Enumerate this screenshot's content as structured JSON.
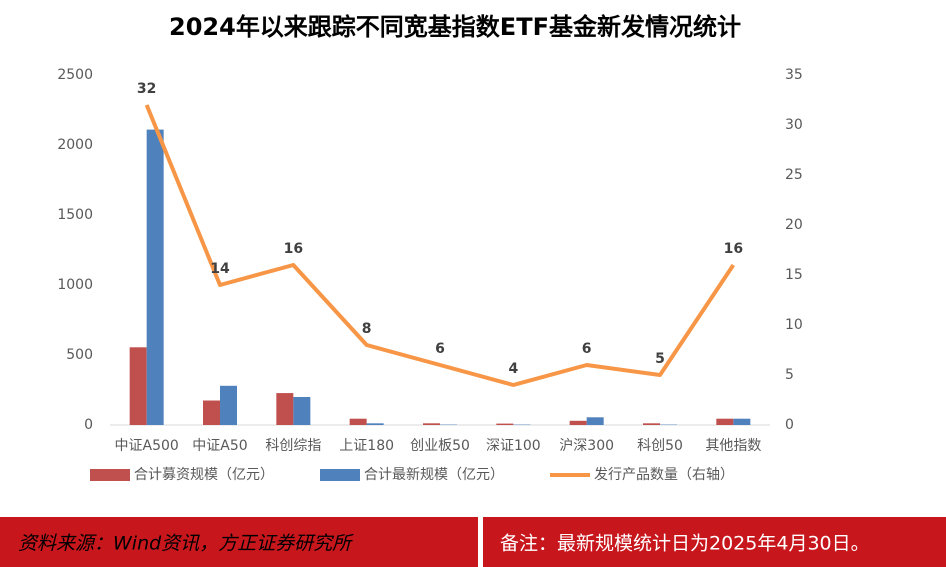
{
  "chart_data": {
    "type": "bar",
    "title": "2024年以来跟踪不同宽基指数ETF基金新发情况统计",
    "categories": [
      "中证A500",
      "中证A50",
      "科创综指",
      "上证180",
      "创业板50",
      "深证100",
      "沪深300",
      "科创50",
      "其他指数"
    ],
    "series": [
      {
        "name": "合计募资规模（亿元）",
        "color": "#c0504d",
        "type": "bar",
        "values": [
          555,
          175,
          228,
          45,
          12,
          10,
          30,
          12,
          45
        ]
      },
      {
        "name": "合计最新规模（亿元）",
        "color": "#4f81bd",
        "type": "bar",
        "values": [
          2110,
          280,
          200,
          12,
          3,
          3,
          55,
          3,
          45
        ]
      },
      {
        "name": "发行产品数量（右轴）",
        "color": "#f79646",
        "type": "line",
        "axis": "y2",
        "values": [
          32,
          14,
          16,
          8,
          6,
          4,
          6,
          5,
          16
        ]
      }
    ],
    "ylim": [
      0,
      2500
    ],
    "yticks": [
      0,
      500,
      1000,
      1500,
      2000,
      2500
    ],
    "y2lim": [
      0,
      35
    ],
    "y2ticks": [
      0,
      5,
      10,
      15,
      20,
      25,
      30,
      35
    ],
    "legend": "bottom"
  },
  "footer": {
    "source": "资料来源：Wind资讯，方正证券研究所",
    "note": "备注：最新规模统计日为2025年4月30日。"
  }
}
